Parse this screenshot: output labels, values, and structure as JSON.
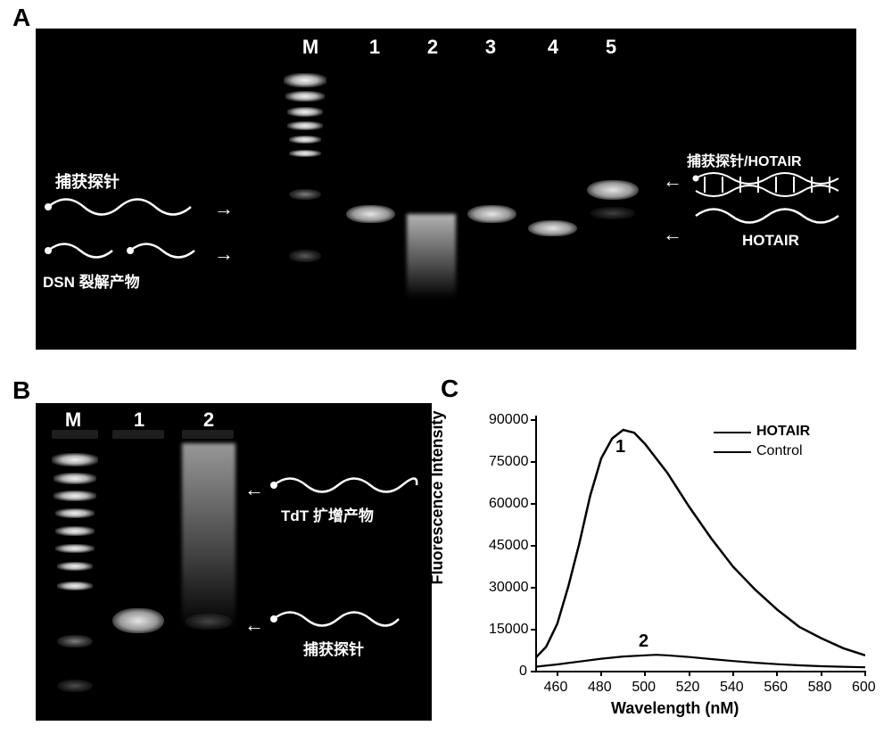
{
  "panelLabels": {
    "A": "A",
    "B": "B",
    "C": "C"
  },
  "gelA": {
    "laneM": "M",
    "lane1": "1",
    "lane2": "2",
    "lane3": "3",
    "lane4": "4",
    "lane5": "5",
    "leftLabel1": "捕获探针",
    "leftLabel2": "DSN 裂解产物",
    "rightLabel1": "捕获探针/HOTAIR",
    "rightLabel2": "HOTAIR"
  },
  "gelB": {
    "laneM": "M",
    "lane1": "1",
    "lane2": "2",
    "label1": "TdT 扩增产物",
    "label2": "捕获探针"
  },
  "chart": {
    "ylabel": "Fluorescence Intensity",
    "xlabel": "Wavelength (nM)",
    "xticks": [
      460,
      480,
      500,
      520,
      540,
      560,
      580,
      600
    ],
    "yticks": [
      0,
      15000,
      30000,
      45000,
      60000,
      75000,
      90000
    ],
    "ylim": [
      0,
      90000
    ],
    "xlim": [
      450,
      600
    ],
    "legend1": "HOTAIR",
    "legend2": "Control",
    "curve1Label": "1",
    "curve2Label": "2",
    "background_color": "#ffffff",
    "line_color": "#000000",
    "hotair_curve": [
      [
        450,
        5000
      ],
      [
        455,
        9000
      ],
      [
        460,
        17000
      ],
      [
        465,
        30000
      ],
      [
        470,
        45000
      ],
      [
        475,
        62000
      ],
      [
        480,
        75000
      ],
      [
        485,
        82000
      ],
      [
        490,
        85000
      ],
      [
        495,
        84000
      ],
      [
        500,
        80000
      ],
      [
        510,
        70000
      ],
      [
        520,
        58000
      ],
      [
        530,
        47000
      ],
      [
        540,
        37000
      ],
      [
        550,
        29000
      ],
      [
        560,
        22000
      ],
      [
        570,
        16000
      ],
      [
        580,
        12000
      ],
      [
        590,
        8500
      ],
      [
        600,
        6000
      ]
    ],
    "control_curve": [
      [
        450,
        2000
      ],
      [
        460,
        2800
      ],
      [
        470,
        3800
      ],
      [
        480,
        4800
      ],
      [
        490,
        5600
      ],
      [
        500,
        6000
      ],
      [
        505,
        6200
      ],
      [
        510,
        6000
      ],
      [
        520,
        5400
      ],
      [
        530,
        4700
      ],
      [
        540,
        4000
      ],
      [
        550,
        3400
      ],
      [
        560,
        2900
      ],
      [
        570,
        2500
      ],
      [
        580,
        2200
      ],
      [
        590,
        2000
      ],
      [
        600,
        1800
      ]
    ]
  }
}
